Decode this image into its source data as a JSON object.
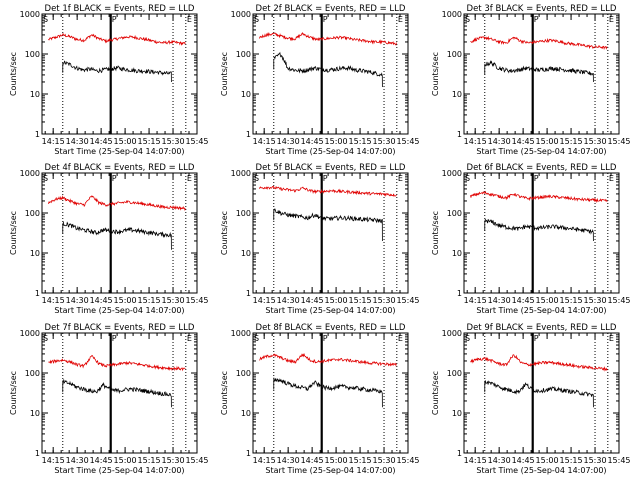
{
  "chart_data": {
    "type": "line",
    "grid": false,
    "xlabel": "Start Time (25-Sep-04 14:07:00)",
    "ylabel": "Counts/sec",
    "yscale": "log",
    "ylim": [
      1,
      1000
    ],
    "xlim_minutes": [
      8,
      105
    ],
    "xtick_labels": [
      "14:15",
      "14:30",
      "14:45",
      "15:00",
      "15:15",
      "15:30",
      "15:45"
    ],
    "xtick_minutes": [
      15,
      30,
      45,
      60,
      75,
      90,
      105
    ],
    "ytick_labels": [
      "1",
      "10",
      "100",
      "1000"
    ],
    "ytick_values": [
      1,
      10,
      100,
      1000
    ],
    "markers": [
      {
        "label": "S",
        "minute": 8,
        "style": "dotted"
      },
      {
        "label": "",
        "minute": 21,
        "style": "dotted"
      },
      {
        "label": "P",
        "minute": 51,
        "style": "solid-thick"
      },
      {
        "label": "",
        "minute": 90,
        "style": "dotted"
      },
      {
        "label": "E",
        "minute": 98,
        "style": "dotted"
      }
    ],
    "series_colors": {
      "events": "#000000",
      "lld": "#e00000"
    },
    "panels": [
      {
        "title": "Det 1f BLACK = Events, RED = LLD",
        "lld": {
          "start": 12,
          "end": 98,
          "values": [
            230,
            260,
            300,
            270,
            230,
            220,
            300,
            240,
            210,
            230,
            250,
            270,
            260,
            240,
            220,
            200,
            190,
            200,
            190,
            180
          ]
        },
        "events": {
          "start": 21,
          "end": 89,
          "values": [
            62,
            55,
            45,
            40,
            42,
            38,
            40,
            42,
            45,
            42,
            40,
            38,
            38,
            36,
            35,
            33,
            32
          ],
          "drop_to": 20
        }
      },
      {
        "title": "Det 2f BLACK = Events, RED = LLD",
        "lld": {
          "start": 12,
          "end": 98,
          "values": [
            260,
            300,
            320,
            280,
            250,
            240,
            320,
            260,
            230,
            240,
            250,
            260,
            250,
            230,
            220,
            210,
            200,
            200,
            190,
            180
          ]
        },
        "events": {
          "start": 21,
          "end": 89,
          "values": [
            75,
            100,
            45,
            40,
            38,
            40,
            45,
            42,
            40,
            42,
            44,
            45,
            40,
            38,
            36,
            33,
            30
          ],
          "drop_to": 15
        }
      },
      {
        "title": "Det 3f BLACK = Events, RED = LLD",
        "lld": {
          "start": 12,
          "end": 98,
          "values": [
            200,
            240,
            260,
            230,
            200,
            190,
            260,
            210,
            190,
            200,
            210,
            220,
            210,
            190,
            180,
            170,
            160,
            150,
            150,
            140
          ]
        },
        "events": {
          "start": 21,
          "end": 89,
          "values": [
            55,
            60,
            45,
            40,
            38,
            40,
            44,
            42,
            40,
            42,
            44,
            42,
            40,
            38,
            36,
            34,
            32
          ],
          "drop_to": 20
        }
      },
      {
        "title": "Det 4f BLACK = Events, RED = LLD",
        "lld": {
          "start": 12,
          "end": 98,
          "values": [
            180,
            220,
            240,
            200,
            170,
            160,
            260,
            180,
            160,
            170,
            180,
            190,
            180,
            170,
            160,
            150,
            140,
            140,
            135,
            130
          ]
        },
        "events": {
          "start": 21,
          "end": 89,
          "values": [
            55,
            50,
            42,
            38,
            35,
            32,
            38,
            36,
            34,
            36,
            38,
            36,
            34,
            32,
            30,
            29,
            28
          ],
          "drop_to": 12
        }
      },
      {
        "title": "Det 5f BLACK = Events, RED = LLD",
        "lld": {
          "start": 12,
          "end": 98,
          "values": [
            420,
            440,
            430,
            400,
            380,
            360,
            420,
            360,
            340,
            350,
            360,
            350,
            340,
            330,
            320,
            310,
            300,
            300,
            290,
            280
          ]
        },
        "events": {
          "start": 21,
          "end": 89,
          "values": [
            120,
            100,
            90,
            85,
            80,
            75,
            90,
            75,
            72,
            74,
            76,
            74,
            72,
            70,
            68,
            66,
            64
          ],
          "drop_to": 20
        }
      },
      {
        "title": "Det 6f BLACK = Events, RED = LLD",
        "lld": {
          "start": 12,
          "end": 98,
          "values": [
            260,
            300,
            320,
            290,
            260,
            240,
            300,
            250,
            230,
            240,
            250,
            260,
            250,
            240,
            230,
            220,
            215,
            210,
            205,
            200
          ]
        },
        "events": {
          "start": 21,
          "end": 89,
          "values": [
            65,
            60,
            50,
            45,
            42,
            40,
            46,
            44,
            42,
            44,
            46,
            44,
            42,
            40,
            38,
            36,
            34
          ],
          "drop_to": 20
        }
      },
      {
        "title": "Det 7f BLACK = Events, RED = LLD",
        "lld": {
          "start": 12,
          "end": 98,
          "values": [
            180,
            200,
            210,
            190,
            160,
            150,
            260,
            170,
            150,
            160,
            170,
            180,
            170,
            160,
            150,
            140,
            135,
            130,
            130,
            125
          ]
        },
        "events": {
          "start": 21,
          "end": 89,
          "values": [
            60,
            55,
            45,
            40,
            36,
            34,
            50,
            38,
            36,
            38,
            40,
            38,
            36,
            34,
            32,
            30,
            28
          ],
          "drop_to": 14
        }
      },
      {
        "title": "Det 8f BLACK = Events, RED = LLD",
        "lld": {
          "start": 12,
          "end": 98,
          "values": [
            220,
            260,
            280,
            240,
            200,
            190,
            290,
            210,
            190,
            200,
            210,
            220,
            210,
            200,
            190,
            180,
            175,
            170,
            165,
            160
          ]
        },
        "events": {
          "start": 21,
          "end": 89,
          "values": [
            70,
            65,
            55,
            48,
            44,
            40,
            58,
            45,
            42,
            44,
            46,
            44,
            42,
            40,
            38,
            36,
            34
          ],
          "drop_to": 14
        }
      },
      {
        "title": "Det 9f BLACK = Events, RED = LLD",
        "lld": {
          "start": 12,
          "end": 98,
          "values": [
            190,
            220,
            230,
            200,
            170,
            160,
            280,
            180,
            160,
            170,
            180,
            185,
            175,
            165,
            155,
            145,
            140,
            135,
            130,
            125
          ]
        },
        "events": {
          "start": 21,
          "end": 89,
          "values": [
            60,
            55,
            46,
            40,
            36,
            34,
            52,
            38,
            36,
            38,
            40,
            38,
            36,
            34,
            32,
            30,
            28
          ],
          "drop_to": 14
        }
      }
    ]
  }
}
